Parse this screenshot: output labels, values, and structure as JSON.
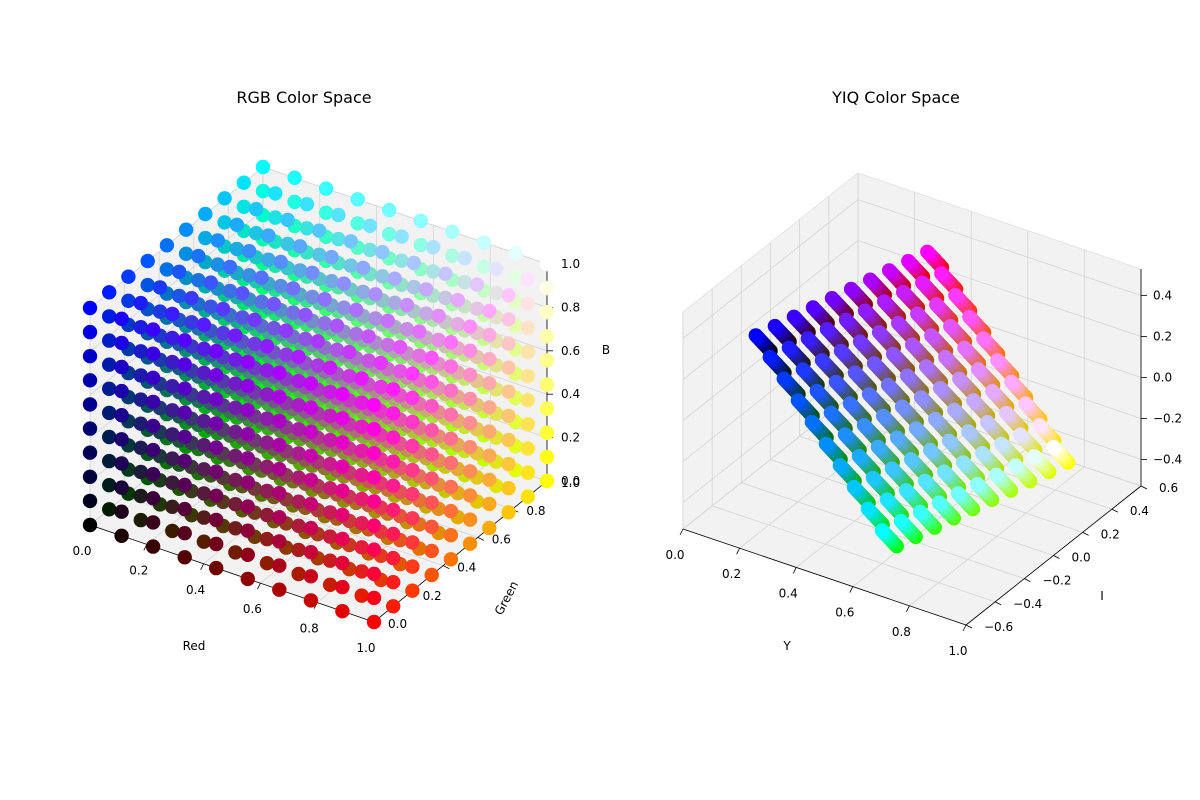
{
  "figure": {
    "background": "#ffffff",
    "pane_color": "#f2f2f2",
    "grid_color": "#d4d4d4"
  },
  "chart_data": [
    {
      "type": "scatter",
      "projection": "3d",
      "title": "RGB Color Space",
      "xlabel": "Red",
      "ylabel": "Green",
      "zlabel": "B",
      "xlim": [
        0,
        1
      ],
      "ylim": [
        0,
        1
      ],
      "zlim": [
        0,
        1
      ],
      "xticks": [
        "0.0",
        "0.2",
        "0.4",
        "0.6",
        "0.8",
        "1.0"
      ],
      "yticks": [
        "0.0",
        "0.2",
        "0.4",
        "0.6",
        "0.8",
        "1.0"
      ],
      "zticks": [
        "0.0",
        "0.2",
        "0.4",
        "0.6",
        "0.8",
        "1.0"
      ],
      "grid": true,
      "points_per_axis": 10,
      "point_color": "rgb(r,g,b) of each sample",
      "x_values": "r = 0, 1/9, 2/9, ..., 1",
      "y_values": "g = 0, 1/9, 2/9, ..., 1",
      "z_values": "b = 0, 1/9, 2/9, ..., 1"
    },
    {
      "type": "scatter",
      "projection": "3d",
      "title": "YIQ Color Space",
      "xlabel": "Y",
      "ylabel": "I",
      "zlabel": "",
      "xlim": [
        0,
        1
      ],
      "ylim": [
        -0.6,
        0.6
      ],
      "zlim": [
        -0.53,
        0.53
      ],
      "xticks": [
        "0.0",
        "0.2",
        "0.4",
        "0.6",
        "0.8",
        "1.0"
      ],
      "yticks": [
        "−0.6",
        "−0.4",
        "−0.2",
        "0.0",
        "0.2",
        "0.4",
        "0.6"
      ],
      "zticks": [
        "−0.4",
        "−0.2",
        "0.0",
        "0.2",
        "0.4"
      ],
      "grid": true,
      "points_per_axis": 10,
      "point_color": "rgb(r,g,b) of each sample",
      "x_values": "Y = 0.299r + 0.587g + 0.114b",
      "y_values": "I = 0.596r − 0.274g − 0.322b",
      "z_values": "Q = 0.211r − 0.523g + 0.312b"
    }
  ]
}
